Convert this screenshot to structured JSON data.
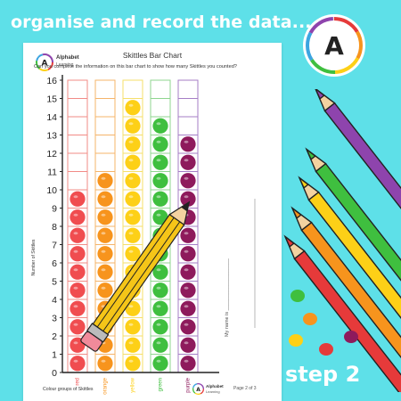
{
  "headline": "organise and record the data...",
  "logo_letter": "A",
  "step": "step 2",
  "worksheet": {
    "brand_name": "Alphabet",
    "brand_sub": "Learning",
    "title": "Skittles Bar Chart",
    "instruction": "Can you complete the information on this bar chart to show how many Skittles you counted?",
    "y_axis_title": "Number of Skittles",
    "x_axis_title": "Colour groups of Skittles",
    "name_label": "My name is ___________________",
    "page_number": "Page 2 of 3"
  },
  "chart_data": {
    "type": "bar",
    "categories": [
      "red",
      "orange",
      "yellow",
      "green",
      "purple"
    ],
    "series": [
      {
        "values": [
          10,
          11,
          15,
          14,
          13
        ]
      }
    ],
    "ylim": [
      0,
      16
    ],
    "y_ticks": [
      "0",
      "1",
      "2",
      "3",
      "4",
      "5",
      "6",
      "7",
      "8",
      "9",
      "10",
      "11",
      "12",
      "13",
      "14",
      "15",
      "16"
    ],
    "colors": {
      "red": "#f04d50",
      "orange": "#f7941d",
      "yellow": "#fdd017",
      "green": "#3fbf3f",
      "purple": "#8e1a5c"
    },
    "box_colors": {
      "red": "#f28b86",
      "orange": "#f5b46a",
      "yellow": "#f5df6a",
      "green": "#8fd68f",
      "purple": "#a57ec6"
    }
  },
  "colors": {
    "background": "#5ee0e8",
    "text_white": "#ffffff"
  }
}
